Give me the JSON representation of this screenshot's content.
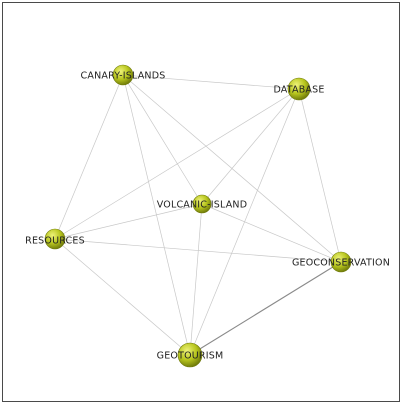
{
  "network": {
    "node_color": "#b8c61e",
    "node_highlight": "#eef27a",
    "node_shadow": "#6f7a0a",
    "edge_color": "#c8c8c8",
    "strong_edge_color": "#8a8a8a",
    "nodes": [
      {
        "id": "canary-islands",
        "label": "CANARY-ISLANDS"
      },
      {
        "id": "database",
        "label": "DATABASE"
      },
      {
        "id": "volcanic-island",
        "label": "VOLCANIC-ISLAND"
      },
      {
        "id": "resources",
        "label": "RESOURCES"
      },
      {
        "id": "geoconservation",
        "label": "GEOCONSERVATION"
      },
      {
        "id": "geotourism",
        "label": "GEOTOURISM"
      }
    ],
    "edges": [
      {
        "from": "canary-islands",
        "to": "database",
        "weight": 1
      },
      {
        "from": "canary-islands",
        "to": "resources",
        "weight": 1
      },
      {
        "from": "canary-islands",
        "to": "volcanic-island",
        "weight": 1
      },
      {
        "from": "canary-islands",
        "to": "geoconservation",
        "weight": 1
      },
      {
        "from": "canary-islands",
        "to": "geotourism",
        "weight": 1
      },
      {
        "from": "database",
        "to": "resources",
        "weight": 1
      },
      {
        "from": "database",
        "to": "volcanic-island",
        "weight": 1
      },
      {
        "from": "database",
        "to": "geoconservation",
        "weight": 1
      },
      {
        "from": "database",
        "to": "geotourism",
        "weight": 1
      },
      {
        "from": "volcanic-island",
        "to": "resources",
        "weight": 1
      },
      {
        "from": "volcanic-island",
        "to": "geoconservation",
        "weight": 1
      },
      {
        "from": "volcanic-island",
        "to": "geotourism",
        "weight": 1
      },
      {
        "from": "resources",
        "to": "geoconservation",
        "weight": 1
      },
      {
        "from": "resources",
        "to": "geotourism",
        "weight": 1
      },
      {
        "from": "geoconservation",
        "to": "geotourism",
        "weight": 2
      }
    ]
  }
}
